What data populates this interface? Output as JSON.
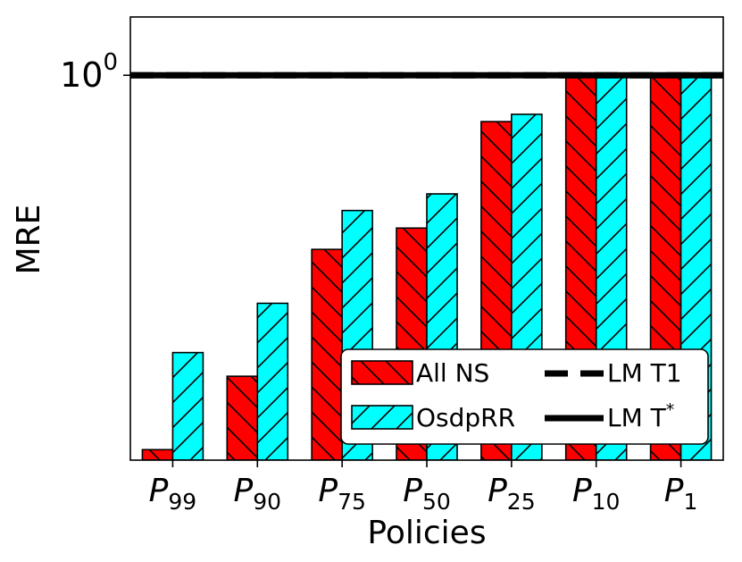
{
  "chart_data": {
    "type": "bar",
    "title": "",
    "xlabel": "Policies",
    "ylabel": "MRE",
    "yscale": "log",
    "ylim": [
      0.3,
      1.2
    ],
    "ytick": {
      "value": 1.0,
      "base": "10",
      "exp": "0"
    },
    "categories": [
      {
        "base": "P",
        "sub": "99"
      },
      {
        "base": "P",
        "sub": "90"
      },
      {
        "base": "P",
        "sub": "75"
      },
      {
        "base": "P",
        "sub": "50"
      },
      {
        "base": "P",
        "sub": "25"
      },
      {
        "base": "P",
        "sub": "10"
      },
      {
        "base": "P",
        "sub": "1"
      }
    ],
    "series": [
      {
        "name": "All NS",
        "color": "#ff0000",
        "hatch": "backslash",
        "values": [
          0.31,
          0.39,
          0.58,
          0.62,
          0.865,
          1.0,
          1.0
        ]
      },
      {
        "name": "OsdpRR",
        "color": "#00ffff",
        "hatch": "slash",
        "values": [
          0.42,
          0.49,
          0.655,
          0.69,
          0.885,
          1.0,
          1.0
        ]
      }
    ],
    "lines": [
      {
        "name": "LM T1",
        "value": 1.0,
        "style": "dashed",
        "color": "#000000"
      },
      {
        "name": "LM T",
        "sup": "*",
        "value": 1.0,
        "style": "solid",
        "color": "#000000"
      }
    ],
    "legend": {
      "placement": "lower-right",
      "entries": [
        {
          "label": "All NS",
          "kind": "bar",
          "series": 0
        },
        {
          "label": "LM T1",
          "kind": "line",
          "style": "dashed"
        },
        {
          "label": "OsdpRR",
          "kind": "bar",
          "series": 1
        },
        {
          "label": "LM T",
          "sup": "*",
          "kind": "line",
          "style": "solid"
        }
      ]
    }
  }
}
